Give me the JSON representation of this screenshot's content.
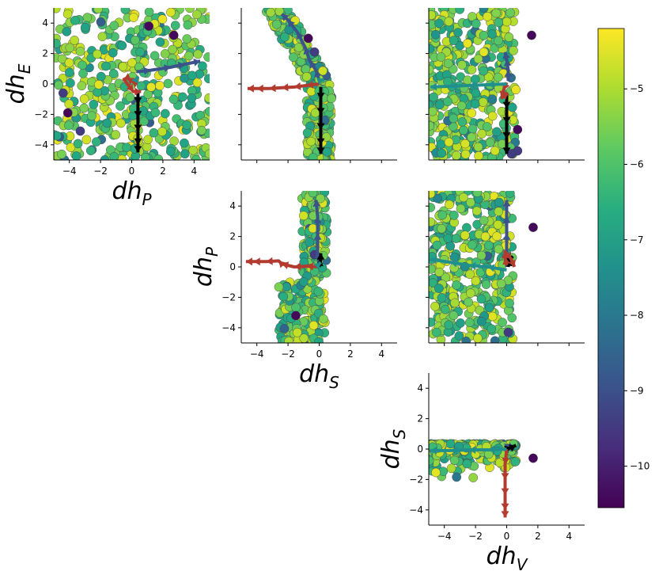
{
  "chart_data": {
    "type": "scatter",
    "layout": "corner-pair-grid",
    "grid": false,
    "xlim": [
      -5,
      5
    ],
    "ylim": [
      -5,
      5
    ],
    "ticks": [
      -4,
      -2,
      0,
      2,
      4
    ],
    "colorbar": {
      "colormap": "viridis",
      "range": [
        -10.55,
        -4.2
      ],
      "ticks": [
        -5,
        -6,
        -7,
        -8,
        -9,
        -10
      ]
    },
    "panels": [
      {
        "id": "E-P",
        "xlabel_main": "dh",
        "xlabel_sub": "P",
        "ylabel_main": "dh",
        "ylabel_sub": "E",
        "show_xticklabels": true,
        "show_yticklabels": true
      },
      {
        "id": "E-S",
        "xlabel_main": "",
        "xlabel_sub": "",
        "ylabel_main": "",
        "ylabel_sub": "",
        "show_xticklabels": false,
        "show_yticklabels": false
      },
      {
        "id": "E-V",
        "xlabel_main": "",
        "xlabel_sub": "",
        "ylabel_main": "",
        "ylabel_sub": "",
        "show_xticklabels": false,
        "show_yticklabels": false
      },
      {
        "id": "P-S",
        "xlabel_main": "dh",
        "xlabel_sub": "S",
        "ylabel_main": "dh",
        "ylabel_sub": "P",
        "show_xticklabels": true,
        "show_yticklabels": true
      },
      {
        "id": "P-V",
        "xlabel_main": "",
        "xlabel_sub": "",
        "ylabel_main": "",
        "ylabel_sub": "",
        "show_xticklabels": false,
        "show_yticklabels": false
      },
      {
        "id": "S-V",
        "xlabel_main": "dh",
        "xlabel_sub": "V",
        "ylabel_main": "dh",
        "ylabel_sub": "S",
        "show_xticklabels": true,
        "show_yticklabels": true
      }
    ],
    "trajectories": {
      "E-P": [
        {
          "color": "#3b528b",
          "points": [
            [
              0.3,
              0.8
            ],
            [
              1.2,
              0.9
            ],
            [
              2.5,
              1.1
            ],
            [
              3.4,
              1.3
            ],
            [
              4.4,
              1.5
            ]
          ]
        },
        {
          "color": "#000000",
          "points": [
            [
              0.4,
              -0.4
            ],
            [
              0.4,
              -1.3
            ],
            [
              0.4,
              -2.2
            ],
            [
              0.4,
              -3.1
            ],
            [
              0.4,
              -4.0
            ],
            [
              0.4,
              -4.5
            ]
          ]
        },
        {
          "color": "#b23a2e",
          "points": [
            [
              0.3,
              0.0
            ],
            [
              0.0,
              0.2
            ],
            [
              -0.3,
              0.4
            ],
            [
              -0.5,
              0.3
            ],
            [
              0.1,
              -0.5
            ],
            [
              0.6,
              -0.5
            ]
          ]
        },
        {
          "color": "#21908d",
          "points": [
            [
              0.3,
              0.3
            ],
            [
              0.4,
              0.5
            ]
          ]
        }
      ],
      "E-S": [
        {
          "color": "#3b528b",
          "points": [
            [
              0,
              0.2
            ],
            [
              -0.2,
              0.9
            ],
            [
              -0.6,
              1.5
            ],
            [
              -0.9,
              2.4
            ],
            [
              -1.4,
              3.4
            ],
            [
              -2.0,
              4.2
            ],
            [
              -2.4,
              4.6
            ]
          ]
        },
        {
          "color": "#000000",
          "points": [
            [
              0.1,
              -0.2
            ],
            [
              0.1,
              -1.0
            ],
            [
              0.1,
              -2.0
            ],
            [
              0.1,
              -3.0
            ],
            [
              0.1,
              -4.0
            ],
            [
              0.1,
              -4.6
            ]
          ]
        },
        {
          "color": "#b23a2e",
          "points": [
            [
              0,
              0.0
            ],
            [
              -0.8,
              -0.1
            ],
            [
              -1.6,
              -0.2
            ],
            [
              -2.4,
              -0.25
            ],
            [
              -3.2,
              -0.3
            ],
            [
              -4.0,
              -0.3
            ],
            [
              -4.6,
              -0.3
            ]
          ]
        },
        {
          "color": "#21908d",
          "points": [
            [
              0,
              0.2
            ],
            [
              0.3,
              0.3
            ]
          ]
        }
      ],
      "E-V": [
        {
          "color": "#3b528b",
          "points": [
            [
              0.1,
              0.2
            ],
            [
              0.1,
              0.9
            ],
            [
              0.0,
              1.6
            ],
            [
              -0.1,
              2.1
            ]
          ]
        },
        {
          "color": "#000000",
          "points": [
            [
              0.0,
              -0.6
            ],
            [
              0.0,
              -1.6
            ],
            [
              0.0,
              -2.6
            ],
            [
              0.0,
              -3.6
            ],
            [
              0.0,
              -4.6
            ]
          ]
        },
        {
          "color": "#b23a2e",
          "points": [
            [
              0.0,
              0.1
            ],
            [
              -0.2,
              -0.4
            ],
            [
              -0.3,
              -0.9
            ],
            [
              0.1,
              -0.6
            ]
          ]
        },
        {
          "color": "#21908d",
          "points": [
            [
              0.0,
              0.0
            ],
            [
              -1.2,
              -0.05
            ],
            [
              -2.4,
              -0.1
            ],
            [
              -3.6,
              -0.15
            ],
            [
              -4.9,
              -0.2
            ]
          ]
        }
      ],
      "P-S": [
        {
          "color": "#3b528b",
          "points": [
            [
              0.0,
              0.0
            ],
            [
              -0.1,
              1.0
            ],
            [
              -0.1,
              2.2
            ],
            [
              -0.1,
              3.3
            ],
            [
              -0.2,
              4.4
            ]
          ]
        },
        {
          "color": "#000000",
          "points": [
            [
              0.0,
              0.0
            ],
            [
              0.1,
              0.5
            ],
            [
              0.1,
              0.9
            ]
          ]
        },
        {
          "color": "#b23a2e",
          "points": [
            [
              0.0,
              0.0
            ],
            [
              -0.8,
              0.05
            ],
            [
              -1.6,
              0.0
            ],
            [
              -2.4,
              0.2
            ],
            [
              -2.6,
              0.4
            ],
            [
              -3.4,
              0.35
            ],
            [
              -4.2,
              0.35
            ],
            [
              -4.7,
              0.35
            ]
          ]
        },
        {
          "color": "#21908d",
          "points": [
            [
              0.0,
              0.2
            ],
            [
              0.1,
              0.3
            ]
          ]
        }
      ],
      "P-V": [
        {
          "color": "#3b528b",
          "points": [
            [
              0.0,
              0.0
            ],
            [
              0.0,
              1.1
            ],
            [
              0.0,
              2.2
            ],
            [
              0.0,
              3.3
            ],
            [
              0.0,
              4.4
            ]
          ]
        },
        {
          "color": "#000000",
          "points": [
            [
              0.1,
              0.0
            ],
            [
              0.2,
              0.5
            ],
            [
              0.4,
              0.7
            ]
          ]
        },
        {
          "color": "#b23a2e",
          "points": [
            [
              0.0,
              0.1
            ],
            [
              -0.1,
              0.6
            ],
            [
              -0.1,
              1.0
            ],
            [
              0.3,
              0.5
            ],
            [
              0.5,
              0.0
            ]
          ]
        },
        {
          "color": "#21908d",
          "points": [
            [
              0.0,
              -0.2
            ],
            [
              -1.2,
              0.0
            ],
            [
              -2.4,
              0.1
            ],
            [
              -3.6,
              0.3
            ],
            [
              -4.9,
              0.5
            ]
          ]
        }
      ],
      "S-V": [
        {
          "color": "#3b528b",
          "points": [
            [
              0.0,
              0.0
            ],
            [
              0.1,
              0.2
            ],
            [
              0.3,
              0.3
            ]
          ]
        },
        {
          "color": "#000000",
          "points": [
            [
              0.0,
              0.0
            ],
            [
              0.3,
              0.1
            ],
            [
              0.6,
              0.25
            ]
          ]
        },
        {
          "color": "#b23a2e",
          "points": [
            [
              0.0,
              0.0
            ],
            [
              -0.1,
              -1.0
            ],
            [
              -0.1,
              -2.0
            ],
            [
              -0.1,
              -3.0
            ],
            [
              -0.1,
              -4.0
            ],
            [
              -0.1,
              -4.5
            ]
          ]
        },
        {
          "color": "#21908d",
          "points": [
            [
              0.0,
              0.0
            ],
            [
              -1.2,
              -0.05
            ],
            [
              -2.4,
              -0.05
            ],
            [
              -3.6,
              -0.1
            ],
            [
              -4.9,
              -0.1
            ]
          ]
        }
      ]
    },
    "outliers": {
      "E-P": [
        [
          2.7,
          3.2
        ],
        [
          -3.3,
          -3.1
        ],
        [
          1.1,
          3.8
        ],
        [
          -4.4,
          -0.6
        ],
        [
          -4.1,
          -1.9
        ]
      ],
      "E-S": [
        [
          -0.7,
          3.0
        ],
        [
          -0.3,
          2.1
        ]
      ],
      "E-V": [
        [
          1.6,
          3.2
        ],
        [
          0.7,
          -4.4
        ],
        [
          0.7,
          -3.0
        ],
        [
          0.3,
          -4.6
        ]
      ],
      "P-S": [
        [
          -1.5,
          -3.2
        ],
        [
          -0.3,
          0.8
        ]
      ],
      "P-V": [
        [
          1.7,
          2.6
        ],
        [
          0.1,
          -4.3
        ]
      ],
      "S-V": [
        [
          1.7,
          -0.6
        ]
      ]
    }
  }
}
